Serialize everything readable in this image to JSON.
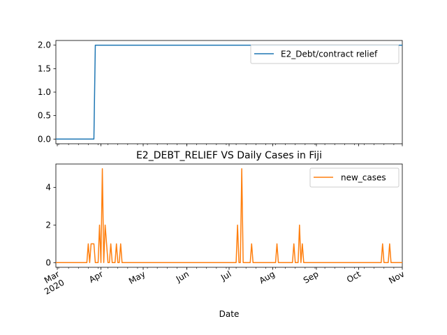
{
  "chart_data": [
    {
      "type": "line",
      "title": "",
      "xlabel": "",
      "ylabel": "",
      "x_range": [
        "2020-02-29",
        "2020-11-01"
      ],
      "ylim": [
        -0.1,
        2.1
      ],
      "yticks": [
        0.0,
        0.5,
        1.0,
        1.5,
        2.0
      ],
      "ytick_labels": [
        "0.0",
        "0.5",
        "1.0",
        "1.5",
        "2.0"
      ],
      "grid": false,
      "legend_position": "top-right",
      "series": [
        {
          "name": "E2_Debt/contract relief",
          "color": "#1f77b4",
          "x": [
            "2020-02-29",
            "2020-03-27",
            "2020-03-28",
            "2020-11-01"
          ],
          "y": [
            0,
            0,
            2,
            2
          ]
        }
      ]
    },
    {
      "type": "line",
      "title": "E2_DEBT_RELIEF VS Daily Cases in Fiji",
      "xlabel": "Date",
      "ylabel": "",
      "x_range": [
        "2020-02-29",
        "2020-11-01"
      ],
      "ylim": [
        -0.25,
        5.25
      ],
      "yticks": [
        0,
        2,
        4
      ],
      "ytick_labels": [
        "0",
        "2",
        "4"
      ],
      "xticks": [
        "2020-03-01",
        "2020-04-01",
        "2020-05-01",
        "2020-06-01",
        "2020-07-01",
        "2020-08-01",
        "2020-09-01",
        "2020-10-01",
        "2020-11-01"
      ],
      "xtick_labels": [
        "Mar\n2020",
        "Apr",
        "May",
        "Jun",
        "Jul",
        "Aug",
        "Sep",
        "Oct",
        "Nov"
      ],
      "grid": false,
      "legend_position": "top-right",
      "series": [
        {
          "name": "new_cases",
          "color": "#ff7f0e",
          "x": [
            "2020-02-29",
            "2020-03-22",
            "2020-03-23",
            "2020-03-24",
            "2020-03-25",
            "2020-03-26",
            "2020-03-27",
            "2020-03-28",
            "2020-03-29",
            "2020-03-30",
            "2020-03-31",
            "2020-04-01",
            "2020-04-02",
            "2020-04-03",
            "2020-04-04",
            "2020-04-05",
            "2020-04-06",
            "2020-04-07",
            "2020-04-08",
            "2020-04-09",
            "2020-04-10",
            "2020-04-11",
            "2020-04-12",
            "2020-04-13",
            "2020-04-14",
            "2020-04-15",
            "2020-04-16",
            "2020-04-17",
            "2020-07-05",
            "2020-07-06",
            "2020-07-07",
            "2020-07-08",
            "2020-07-09",
            "2020-07-10",
            "2020-07-11",
            "2020-07-16",
            "2020-07-17",
            "2020-07-18",
            "2020-08-03",
            "2020-08-04",
            "2020-08-05",
            "2020-08-15",
            "2020-08-16",
            "2020-08-17",
            "2020-08-19",
            "2020-08-20",
            "2020-08-21",
            "2020-08-22",
            "2020-08-23",
            "2020-10-17",
            "2020-10-18",
            "2020-10-19",
            "2020-10-22",
            "2020-10-23",
            "2020-10-24",
            "2020-11-01"
          ],
          "y": [
            0,
            0,
            1,
            0,
            1,
            1,
            1,
            0,
            0,
            0,
            2,
            0,
            5,
            0,
            2,
            1,
            0,
            0,
            1,
            0,
            0,
            0,
            1,
            0,
            0,
            1,
            0,
            0,
            0,
            0,
            2,
            0,
            0,
            5,
            0,
            0,
            1,
            0,
            0,
            1,
            0,
            0,
            1,
            0,
            0,
            2,
            0,
            1,
            0,
            0,
            1,
            0,
            0,
            1,
            0,
            0
          ]
        }
      ]
    }
  ]
}
